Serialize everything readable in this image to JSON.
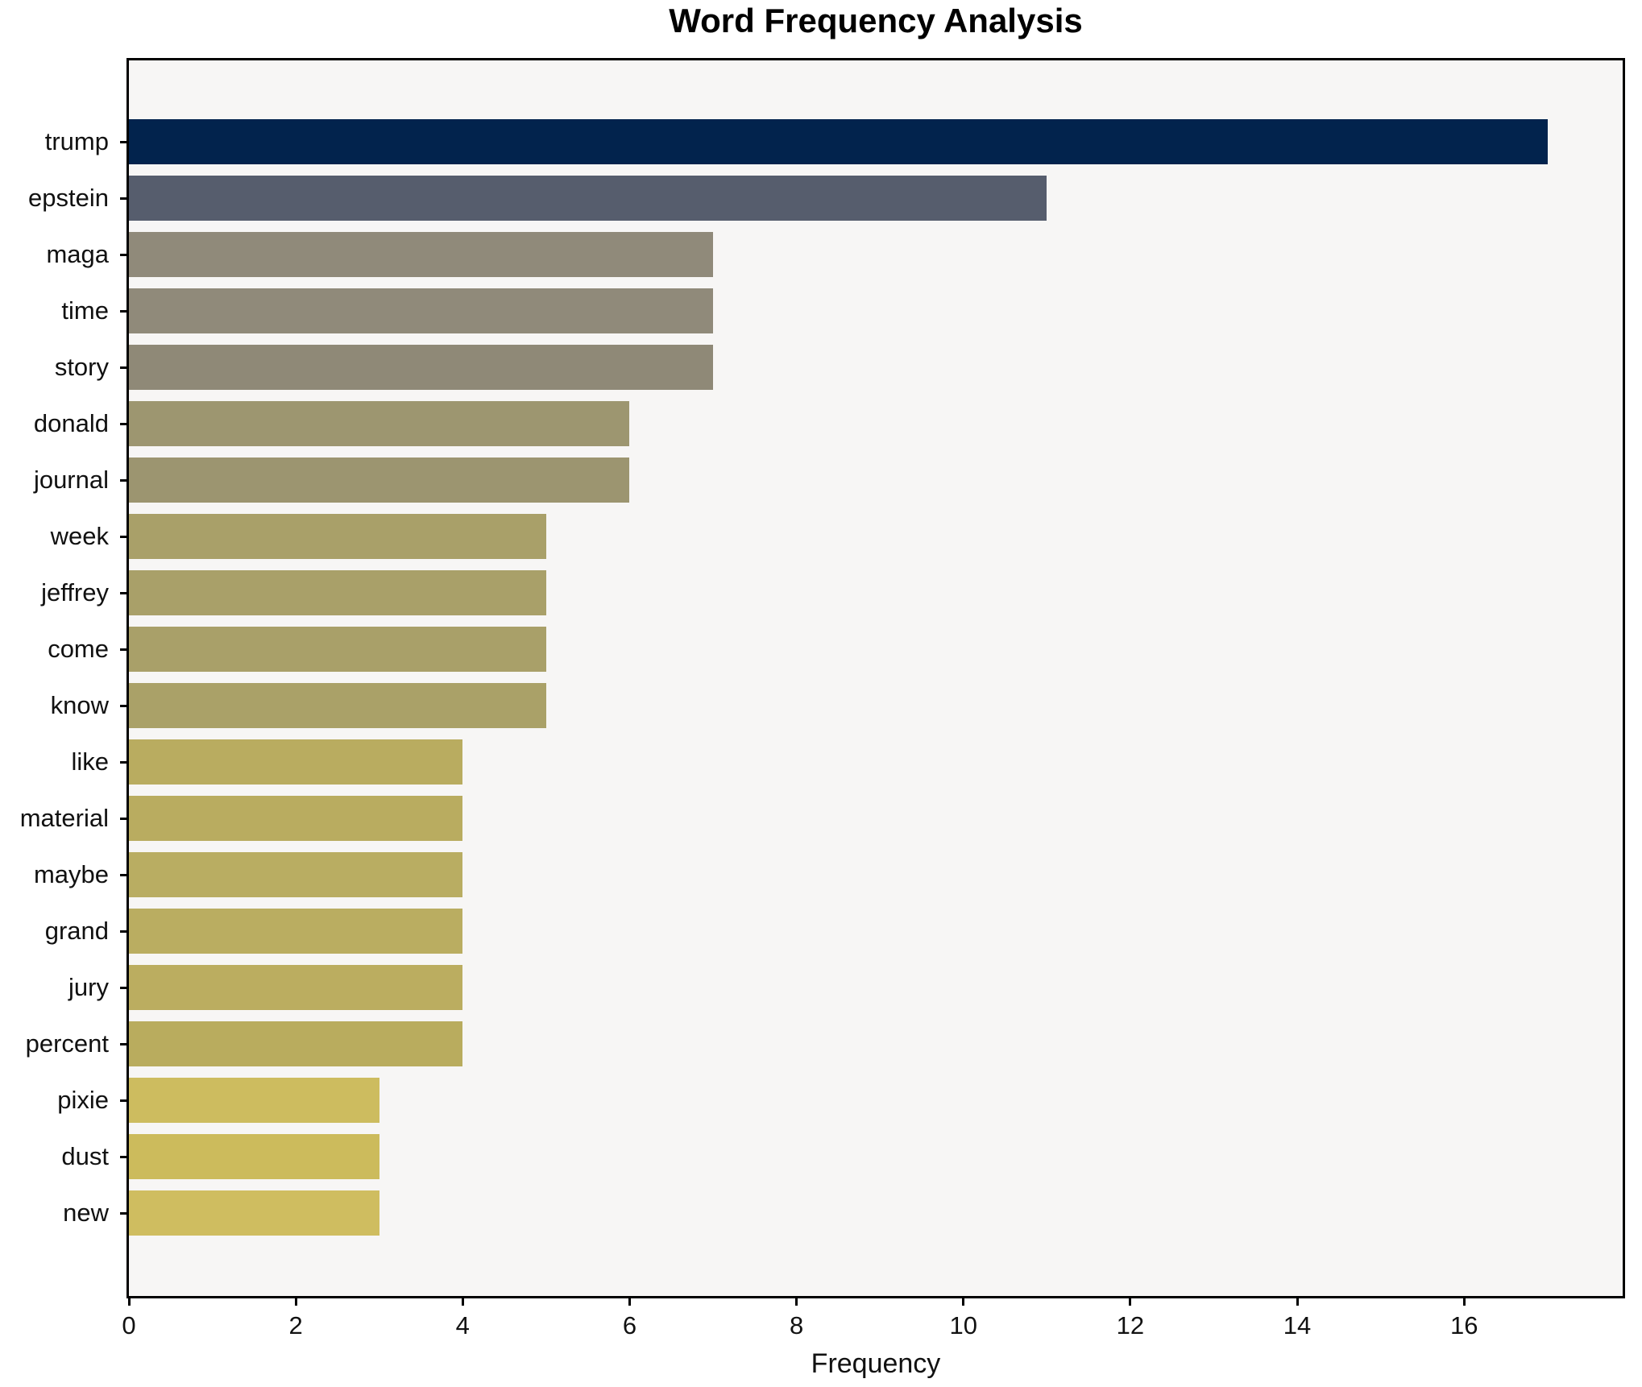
{
  "chart_data": {
    "type": "bar",
    "orientation": "horizontal",
    "title": "Word Frequency Analysis",
    "xlabel": "Frequency",
    "ylabel": "",
    "categories": [
      "trump",
      "epstein",
      "maga",
      "time",
      "story",
      "donald",
      "journal",
      "week",
      "jeffrey",
      "come",
      "know",
      "like",
      "material",
      "maybe",
      "grand",
      "jury",
      "percent",
      "pixie",
      "dust",
      "new"
    ],
    "values": [
      17,
      11,
      7,
      7,
      7,
      6,
      6,
      5,
      5,
      5,
      5,
      4,
      4,
      4,
      4,
      4,
      4,
      3,
      3,
      3
    ],
    "bar_colors": [
      "#02234d",
      "#565d6d",
      "#908a7a",
      "#908a7a",
      "#8f8977",
      "#9d9670",
      "#9c9570",
      "#a9a069",
      "#a9a069",
      "#a9a069",
      "#aaa168",
      "#b9ac60",
      "#b9ac60",
      "#b9ad62",
      "#baad61",
      "#bbad60",
      "#b9ac5e",
      "#cdbc5f",
      "#ccbb5c",
      "#cfbd60"
    ],
    "colormap": "cividis-reversed-by-value",
    "xlim": [
      0,
      17.9
    ],
    "xticks": [
      0,
      2,
      4,
      6,
      8,
      10,
      12,
      14,
      16
    ],
    "grid": false,
    "legend": null,
    "plot_bg": "#f7f6f5",
    "fig_bg": "#ffffff",
    "spine_color": "#000000"
  }
}
